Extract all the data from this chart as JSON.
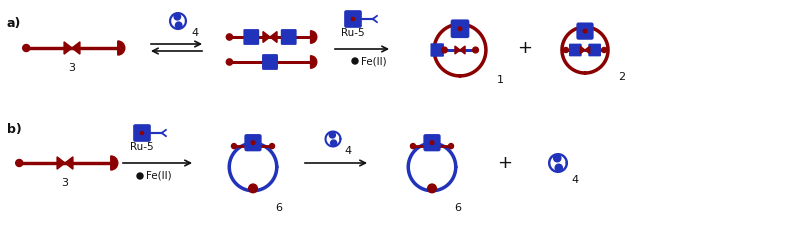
{
  "fig_width": 8.03,
  "fig_height": 2.35,
  "dpi": 100,
  "bg_color": "#ffffff",
  "dark_red": "#8B0000",
  "blue": "#2233BB",
  "black": "#111111",
  "label_a": "a)",
  "label_b": "b)",
  "label_3": "3",
  "label_4": "4",
  "label_1": "1",
  "label_2": "2",
  "label_6": "6",
  "label_ru5": "Ru-5",
  "label_feII": "Fe(II)",
  "plus": "+"
}
